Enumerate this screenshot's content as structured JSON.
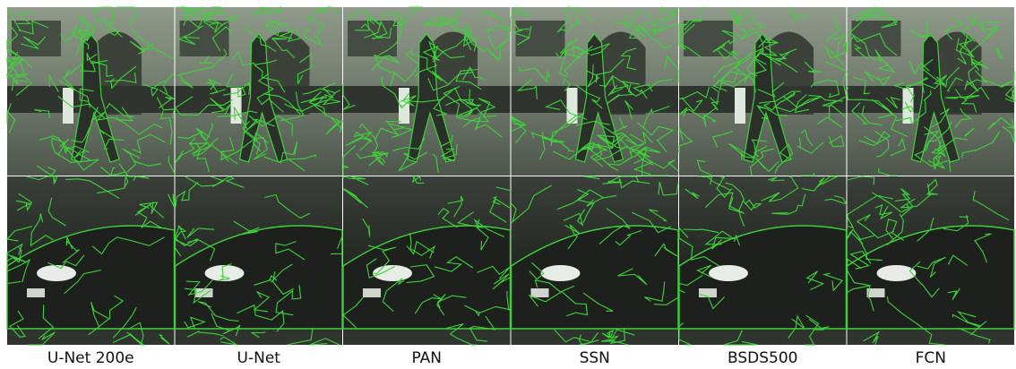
{
  "captions": [
    "U-Net 200e",
    "U-Net",
    "PAN",
    "SSN",
    "BSDS500",
    "FCN"
  ]
}
